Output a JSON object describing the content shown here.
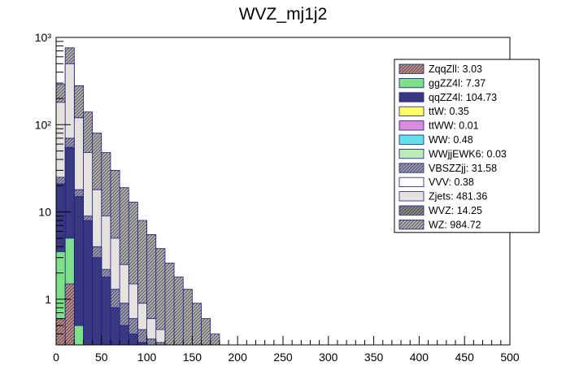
{
  "chart_data": {
    "type": "bar",
    "stacked": true,
    "title": "WVZ_mj1j2",
    "xlabel": "",
    "ylabel": "",
    "xlim": [
      0,
      500
    ],
    "ylim": [
      0.3,
      1000
    ],
    "yscale": "log",
    "bin_width": 10,
    "x_ticks": [
      0,
      50,
      100,
      150,
      200,
      250,
      300,
      350,
      400,
      450,
      500
    ],
    "y_ticks": [
      {
        "value": 1,
        "label": "1"
      },
      {
        "value": 10,
        "label": "10"
      },
      {
        "value": 100,
        "label": "10²"
      },
      {
        "value": 1000,
        "label": "10³"
      }
    ],
    "legend_position": "top-right",
    "legend": [
      {
        "label": "ZqqZll: 3.03",
        "color": "#c08b8b",
        "hatch": true
      },
      {
        "label": "ggZZ4l: 7.37",
        "color": "#7fe08a",
        "hatch": false
      },
      {
        "label": "qqZZ4l: 104.73",
        "color": "#3a3a9a",
        "hatch": true
      },
      {
        "label": "ttW: 0.35",
        "color": "#ffff66",
        "hatch": false
      },
      {
        "label": "ttWW: 0.01",
        "color": "#d98ad9",
        "hatch": false
      },
      {
        "label": "WW: 0.48",
        "color": "#66e0e8",
        "hatch": false
      },
      {
        "label": "WWjjEWK6: 0.03",
        "color": "#b9ecb9",
        "hatch": false
      },
      {
        "label": "VBSZZjj: 31.58",
        "color": "#9a9ab8",
        "hatch": true
      },
      {
        "label": "VVV: 0.38",
        "color": "#ffffff",
        "hatch": false
      },
      {
        "label": "Zjets: 481.36",
        "color": "#e6e3df",
        "hatch": false
      },
      {
        "label": "WVZ: 14.25",
        "color": "#8a8a8a",
        "hatch": true
      },
      {
        "label": "WZ: 984.72",
        "color": "#b3b3b3",
        "hatch": true
      }
    ],
    "cumulative_series": [
      {
        "name": "ZqqZll: 3.03",
        "values": [
          0.6,
          1.5,
          0.3
        ]
      },
      {
        "name": "ggZZ4l: 7.37",
        "values": [
          3.5,
          5.0,
          0.5
        ]
      },
      {
        "name": "qqZZ4l: 104.73",
        "values": [
          21,
          55,
          15,
          8,
          3,
          1.8,
          0.8,
          0.5,
          0.4,
          0.32
        ]
      },
      {
        "name": "VBSZZjj: 31.58",
        "values": [
          25,
          70,
          18,
          9,
          4,
          2.2,
          1.3,
          0.9,
          0.6,
          0.45,
          0.35,
          0.32
        ]
      },
      {
        "name": "Zjets: 481.36",
        "values": [
          180,
          500,
          120,
          48,
          18,
          9,
          5,
          2.5,
          1.5,
          0.9,
          0.6,
          0.45
        ]
      },
      {
        "name": "WZ: 984.72",
        "values": [
          290,
          760,
          280,
          140,
          80,
          48,
          30,
          19,
          13,
          8,
          5.5,
          3.8,
          2.6,
          1.8,
          1.3,
          0.9,
          0.6,
          0.4
        ]
      }
    ]
  }
}
